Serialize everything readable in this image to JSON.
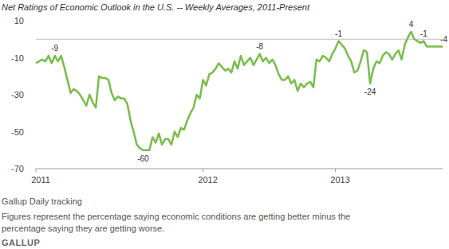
{
  "chart_data": {
    "type": "line",
    "title": "Net Ratings of Economic Outlook in the U.S. -- Weekly Averages, 2011-Present",
    "categories": [
      "2011",
      null,
      null,
      null,
      null,
      null,
      null,
      null,
      null,
      null,
      null,
      null,
      null,
      null,
      null,
      null,
      null,
      null,
      null,
      null,
      null,
      null,
      null,
      null,
      null,
      null,
      null,
      null,
      null,
      null,
      null,
      null,
      null,
      null,
      null,
      null,
      null,
      null,
      null,
      null,
      null,
      null,
      null,
      null,
      null,
      null,
      null,
      null,
      null,
      null,
      null,
      null,
      null,
      "2012",
      null,
      null,
      null,
      null,
      null,
      null,
      null,
      null,
      null,
      null,
      null,
      null,
      null,
      null,
      null,
      null,
      null,
      null,
      null,
      null,
      null,
      null,
      null,
      null,
      null,
      null,
      null,
      null,
      null,
      null,
      null,
      null,
      null,
      null,
      null,
      null,
      null,
      null,
      null,
      null,
      null,
      "2013",
      null,
      null,
      null,
      null,
      null,
      null,
      null,
      null,
      null,
      null,
      null,
      null,
      null,
      null,
      null,
      null,
      null,
      null,
      null,
      null,
      null,
      null,
      null,
      null,
      null,
      null,
      null,
      null,
      null,
      null,
      null,
      null,
      null,
      null
    ],
    "values": [
      -13,
      -12,
      -11,
      -12,
      -9,
      -13,
      -9,
      -12,
      -9,
      -15,
      -22,
      -29,
      -27,
      -28,
      -30,
      -33,
      -36,
      -30,
      -34,
      -37,
      -20,
      -21,
      -21,
      -22,
      -29,
      -33,
      -31,
      -32,
      -32,
      -35,
      -44,
      -50,
      -57,
      -59,
      -60,
      -60,
      -60,
      -53,
      -56,
      -51,
      -57,
      -54,
      -54,
      -57,
      -50,
      -53,
      -48,
      -49,
      -44,
      -40,
      -37,
      -30,
      -32,
      -22,
      -25,
      -19,
      -18,
      -16,
      -13,
      -15,
      -17,
      -16,
      -18,
      -12,
      -16,
      -9,
      -14,
      -12,
      -10,
      -14,
      -11,
      -8,
      -12,
      -10,
      -13,
      -11,
      -14,
      -19,
      -22,
      -22,
      -20,
      -24,
      -22,
      -28,
      -24,
      -26,
      -24,
      -23,
      -26,
      -11,
      -12,
      -9,
      -10,
      -12,
      -8,
      -5,
      -1,
      -3,
      -5,
      -9,
      -12,
      -18,
      -17,
      -12,
      -6,
      -7,
      -24,
      -16,
      -12,
      -13,
      -9,
      -7,
      -8,
      -11,
      -8,
      -6,
      -11,
      -3,
      1,
      4,
      0,
      -1,
      -2,
      -1,
      -4,
      -4,
      -4,
      -4,
      -4,
      -4
    ],
    "color": "#78bd4a",
    "ylim": [
      -70,
      10
    ],
    "yticks": [
      10,
      -10,
      -30,
      -50,
      -70
    ],
    "baseline": 0,
    "grid": false,
    "annotations": [
      {
        "text": "-9",
        "x": 6,
        "y": -9
      },
      {
        "text": "-60",
        "x": 34,
        "y": -60
      },
      {
        "text": "-8",
        "x": 71,
        "y": -8
      },
      {
        "text": "-1",
        "x": 96,
        "y": -1
      },
      {
        "text": "-24",
        "x": 106,
        "y": -24
      },
      {
        "text": "4",
        "x": 119,
        "y": 4
      },
      {
        "text": "-1",
        "x": 123,
        "y": -1
      },
      {
        "text": "-4",
        "x": 129,
        "y": -4
      }
    ],
    "notes": [
      "Gallup Daily tracking",
      "Figures represent the percentage saying economic conditions are getting better minus the",
      "percentage saying they are getting worse."
    ],
    "logo": "GALLUP"
  }
}
